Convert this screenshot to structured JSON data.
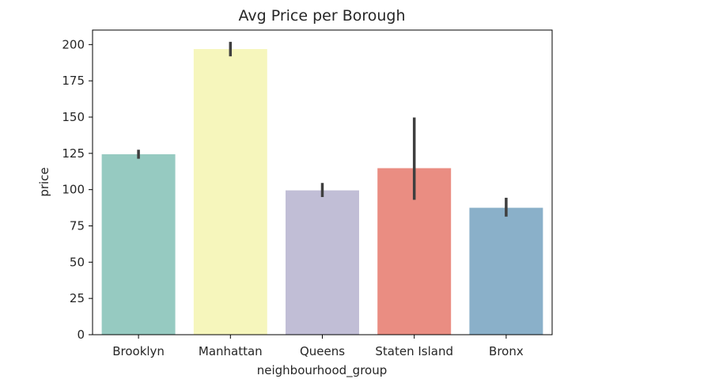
{
  "chart_data": {
    "type": "bar",
    "title": "Avg Price per Borough",
    "xlabel": "neighbourhood_group",
    "ylabel": "price",
    "categories": [
      "Brooklyn",
      "Manhattan",
      "Queens",
      "Staten Island",
      "Bronx"
    ],
    "values": [
      124.4,
      196.9,
      99.5,
      114.8,
      87.5
    ],
    "error_low": [
      121.3,
      191.9,
      94.9,
      93.0,
      81.4
    ],
    "error_high": [
      127.5,
      201.9,
      104.6,
      149.7,
      94.4
    ],
    "colors": [
      "#96cac1",
      "#f6f6bc",
      "#c1bed6",
      "#ea8d82",
      "#8ab0c9"
    ],
    "ylim": [
      0,
      210
    ],
    "yticks": [
      0,
      25,
      50,
      75,
      100,
      125,
      150,
      175,
      200
    ],
    "grid": false,
    "legend": false
  }
}
